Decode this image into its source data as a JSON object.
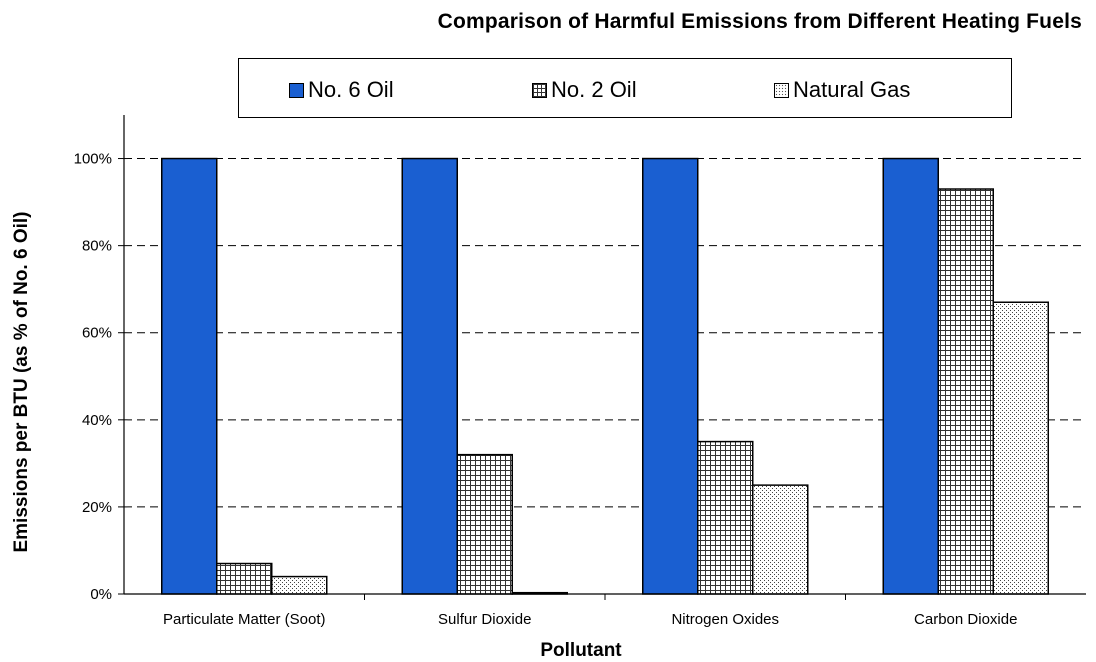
{
  "chart_data": {
    "type": "bar",
    "title": "Comparison of Harmful Emissions from Different Heating Fuels",
    "xlabel": "Pollutant",
    "ylabel": "Emissions per BTU (as % of No. 6 Oil)",
    "categories": [
      "Particulate Matter (Soot)",
      "Sulfur Dioxide",
      "Nitrogen Oxides",
      "Carbon Dioxide"
    ],
    "series": [
      {
        "name": "No. 6 Oil",
        "values": [
          100,
          100,
          100,
          100
        ],
        "color": "#1a5fd1",
        "pattern": "solid"
      },
      {
        "name": "No. 2 Oil",
        "values": [
          7,
          32,
          35,
          93
        ],
        "color": "#ffffff",
        "pattern": "grid"
      },
      {
        "name": "Natural Gas",
        "values": [
          4,
          0.3,
          25,
          67
        ],
        "color": "#ffffff",
        "pattern": "dots"
      }
    ],
    "ylim": [
      0,
      110
    ],
    "yticks": [
      0,
      20,
      40,
      60,
      80,
      100
    ],
    "ytick_labels": [
      "0%",
      "20%",
      "40%",
      "60%",
      "80%",
      "100%"
    ],
    "gridlines": "dashed horizontal",
    "legend_position": "top"
  }
}
